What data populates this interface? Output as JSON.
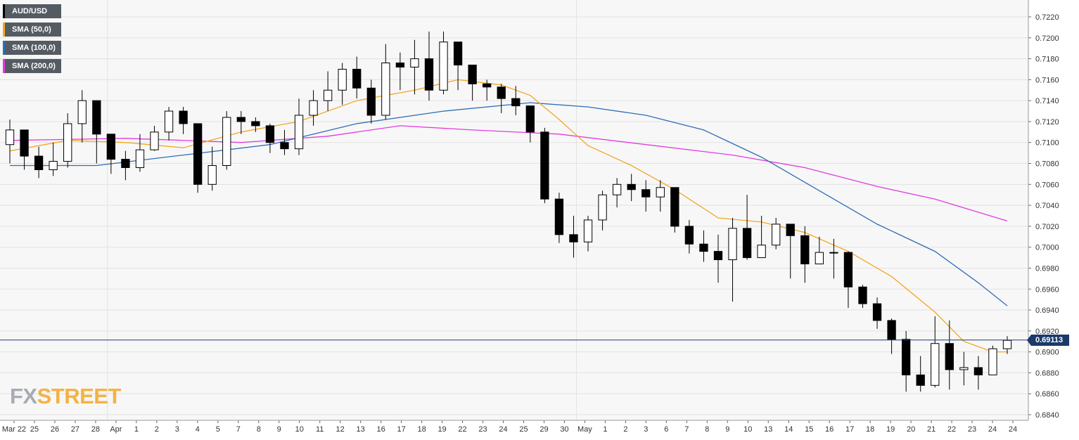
{
  "legend": [
    {
      "label": "AUD/USD",
      "color": "#000000"
    },
    {
      "label": "SMA (50,0)",
      "color": "#f5a623"
    },
    {
      "label": "SMA (100,0)",
      "color": "#2f6db5"
    },
    {
      "label": "SMA (200,0)",
      "color": "#e23be0"
    }
  ],
  "watermark": {
    "part1": "FX",
    "part2": "STREET"
  },
  "current_price": "0.69113",
  "chart_data": {
    "type": "candlestick",
    "symbol": "AUD/USD",
    "ylim": [
      0.6835,
      0.723
    ],
    "y_ticks": [
      "0.6840",
      "0.6860",
      "0.6880",
      "0.6900",
      "0.6920",
      "0.6940",
      "0.6960",
      "0.6980",
      "0.7000",
      "0.7020",
      "0.7040",
      "0.7060",
      "0.7080",
      "0.7100",
      "0.7120",
      "0.7140",
      "0.7160",
      "0.7180",
      "0.7200",
      "0.7220"
    ],
    "x_ticks": [
      "Mar 22",
      "25",
      "26",
      "27",
      "28",
      "Apr",
      "1",
      "2",
      "3",
      "4",
      "5",
      "7",
      "8",
      "9",
      "10",
      "11",
      "12",
      "13",
      "16",
      "17",
      "18",
      "19",
      "22",
      "23",
      "24",
      "25",
      "29",
      "30",
      "May",
      "1",
      "2",
      "3",
      "6",
      "7",
      "8",
      "9",
      "10",
      "13",
      "14",
      "15",
      "16",
      "17",
      "18",
      "19",
      "20",
      "21",
      "22",
      "23",
      "24",
      "24"
    ],
    "closes": [
      0.7112,
      0.7087,
      0.7074,
      0.7082,
      0.7118,
      0.714,
      0.7108,
      0.7084,
      0.7076,
      0.7093,
      0.711,
      0.713,
      0.7118,
      0.706,
      0.7078,
      0.7124,
      0.712,
      0.7116,
      0.71,
      0.7094,
      0.7126,
      0.714,
      0.715,
      0.717,
      0.7152,
      0.7126,
      0.7176,
      0.7172,
      0.718,
      0.715,
      0.7196,
      0.7174,
      0.7156,
      0.7153,
      0.7142,
      0.7135,
      0.711,
      0.7046,
      0.7012,
      0.7005,
      0.7026,
      0.705,
      0.706,
      0.7055,
      0.7048,
      0.7057,
      0.702,
      0.7003,
      0.6996,
      0.6988,
      0.7018,
      0.699,
      0.7002,
      0.7022,
      0.7011,
      0.6984,
      0.6995,
      0.6995,
      0.6962,
      0.6946,
      0.693,
      0.6912,
      0.6878,
      0.6868,
      0.6908,
      0.6883,
      0.6885,
      0.6878,
      0.6903,
      0.6911
    ],
    "highs": [
      0.7122,
      0.7102,
      0.7096,
      0.71,
      0.7128,
      0.715,
      0.7114,
      0.7096,
      0.7092,
      0.7108,
      0.7116,
      0.7134,
      0.7134,
      0.708,
      0.7096,
      0.713,
      0.713,
      0.7124,
      0.7118,
      0.7112,
      0.7142,
      0.715,
      0.7168,
      0.7176,
      0.7182,
      0.716,
      0.7194,
      0.7186,
      0.7198,
      0.7206,
      0.7206,
      0.718,
      0.717,
      0.716,
      0.7156,
      0.7154,
      0.7126,
      0.7114,
      0.7052,
      0.703,
      0.703,
      0.7054,
      0.7066,
      0.707,
      0.7064,
      0.7064,
      0.7054,
      0.7026,
      0.7016,
      0.7012,
      0.7028,
      0.705,
      0.703,
      0.7028,
      0.7022,
      0.702,
      0.701,
      0.7008,
      0.6996,
      0.6964,
      0.6952,
      0.6932,
      0.692,
      0.6896,
      0.6934,
      0.693,
      0.69,
      0.6896,
      0.6906,
      0.6915
    ],
    "lows": [
      0.708,
      0.7074,
      0.7066,
      0.7068,
      0.7076,
      0.71,
      0.708,
      0.707,
      0.7064,
      0.7072,
      0.7092,
      0.7102,
      0.7108,
      0.7052,
      0.7054,
      0.7074,
      0.7108,
      0.711,
      0.709,
      0.7088,
      0.7088,
      0.7116,
      0.713,
      0.7136,
      0.7142,
      0.7118,
      0.7122,
      0.715,
      0.7146,
      0.714,
      0.7146,
      0.715,
      0.714,
      0.714,
      0.7128,
      0.7126,
      0.71,
      0.7042,
      0.7004,
      0.699,
      0.6996,
      0.7016,
      0.7038,
      0.7044,
      0.7034,
      0.7034,
      0.7014,
      0.6994,
      0.6986,
      0.6966,
      0.6948,
      0.6988,
      0.6994,
      0.6998,
      0.697,
      0.6966,
      0.6984,
      0.697,
      0.6942,
      0.6942,
      0.6922,
      0.6898,
      0.6862,
      0.6862,
      0.6866,
      0.6864,
      0.6868,
      0.6864,
      0.688,
      0.6898
    ],
    "open": 0.7098,
    "sma50": [
      [
        0,
        0.7092
      ],
      [
        4,
        0.7102
      ],
      [
        8,
        0.71
      ],
      [
        12,
        0.7095
      ],
      [
        16,
        0.711
      ],
      [
        20,
        0.712
      ],
      [
        24,
        0.714
      ],
      [
        28,
        0.715
      ],
      [
        31,
        0.716
      ],
      [
        34,
        0.7155
      ],
      [
        36,
        0.7145
      ],
      [
        38,
        0.7122
      ],
      [
        40,
        0.7097
      ],
      [
        43,
        0.7078
      ],
      [
        46,
        0.7055
      ],
      [
        49,
        0.7028
      ],
      [
        52,
        0.7024
      ],
      [
        55,
        0.7014
      ],
      [
        58,
        0.6996
      ],
      [
        61,
        0.6972
      ],
      [
        64,
        0.6938
      ],
      [
        66,
        0.691
      ],
      [
        68,
        0.69
      ],
      [
        69,
        0.69
      ]
    ],
    "sma100": [
      [
        0,
        0.7078
      ],
      [
        6,
        0.7078
      ],
      [
        12,
        0.7088
      ],
      [
        18,
        0.7098
      ],
      [
        24,
        0.7118
      ],
      [
        30,
        0.713
      ],
      [
        36,
        0.7138
      ],
      [
        40,
        0.7134
      ],
      [
        44,
        0.7126
      ],
      [
        48,
        0.7112
      ],
      [
        52,
        0.7086
      ],
      [
        56,
        0.7054
      ],
      [
        60,
        0.7022
      ],
      [
        64,
        0.6996
      ],
      [
        67,
        0.6966
      ],
      [
        69,
        0.6944
      ]
    ],
    "sma200": [
      [
        0,
        0.7102
      ],
      [
        8,
        0.7104
      ],
      [
        16,
        0.71
      ],
      [
        22,
        0.7106
      ],
      [
        27,
        0.7116
      ],
      [
        32,
        0.7112
      ],
      [
        38,
        0.7108
      ],
      [
        44,
        0.7098
      ],
      [
        50,
        0.7088
      ],
      [
        55,
        0.7076
      ],
      [
        60,
        0.7058
      ],
      [
        64,
        0.7046
      ],
      [
        69,
        0.7025
      ]
    ]
  }
}
